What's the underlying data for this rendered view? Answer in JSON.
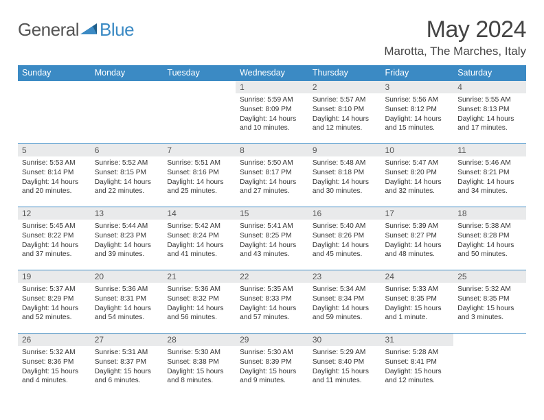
{
  "brand": {
    "text1": "General",
    "text2": "Blue",
    "accent": "#3b8ac4",
    "triangle": "#1f5f8b"
  },
  "title": "May 2024",
  "location": "Marotta, The Marches, Italy",
  "weekdays": [
    "Sunday",
    "Monday",
    "Tuesday",
    "Wednesday",
    "Thursday",
    "Friday",
    "Saturday"
  ],
  "colors": {
    "headerBg": "#3b8ac4",
    "headerText": "#ffffff",
    "dayBg": "#e9eaeb",
    "border": "#3b8ac4"
  },
  "weeks": [
    [
      null,
      null,
      null,
      {
        "n": "1",
        "sr": "5:59 AM",
        "ss": "8:09 PM",
        "dl": "14 hours and 10 minutes."
      },
      {
        "n": "2",
        "sr": "5:57 AM",
        "ss": "8:10 PM",
        "dl": "14 hours and 12 minutes."
      },
      {
        "n": "3",
        "sr": "5:56 AM",
        "ss": "8:12 PM",
        "dl": "14 hours and 15 minutes."
      },
      {
        "n": "4",
        "sr": "5:55 AM",
        "ss": "8:13 PM",
        "dl": "14 hours and 17 minutes."
      }
    ],
    [
      {
        "n": "5",
        "sr": "5:53 AM",
        "ss": "8:14 PM",
        "dl": "14 hours and 20 minutes."
      },
      {
        "n": "6",
        "sr": "5:52 AM",
        "ss": "8:15 PM",
        "dl": "14 hours and 22 minutes."
      },
      {
        "n": "7",
        "sr": "5:51 AM",
        "ss": "8:16 PM",
        "dl": "14 hours and 25 minutes."
      },
      {
        "n": "8",
        "sr": "5:50 AM",
        "ss": "8:17 PM",
        "dl": "14 hours and 27 minutes."
      },
      {
        "n": "9",
        "sr": "5:48 AM",
        "ss": "8:18 PM",
        "dl": "14 hours and 30 minutes."
      },
      {
        "n": "10",
        "sr": "5:47 AM",
        "ss": "8:20 PM",
        "dl": "14 hours and 32 minutes."
      },
      {
        "n": "11",
        "sr": "5:46 AM",
        "ss": "8:21 PM",
        "dl": "14 hours and 34 minutes."
      }
    ],
    [
      {
        "n": "12",
        "sr": "5:45 AM",
        "ss": "8:22 PM",
        "dl": "14 hours and 37 minutes."
      },
      {
        "n": "13",
        "sr": "5:44 AM",
        "ss": "8:23 PM",
        "dl": "14 hours and 39 minutes."
      },
      {
        "n": "14",
        "sr": "5:42 AM",
        "ss": "8:24 PM",
        "dl": "14 hours and 41 minutes."
      },
      {
        "n": "15",
        "sr": "5:41 AM",
        "ss": "8:25 PM",
        "dl": "14 hours and 43 minutes."
      },
      {
        "n": "16",
        "sr": "5:40 AM",
        "ss": "8:26 PM",
        "dl": "14 hours and 45 minutes."
      },
      {
        "n": "17",
        "sr": "5:39 AM",
        "ss": "8:27 PM",
        "dl": "14 hours and 48 minutes."
      },
      {
        "n": "18",
        "sr": "5:38 AM",
        "ss": "8:28 PM",
        "dl": "14 hours and 50 minutes."
      }
    ],
    [
      {
        "n": "19",
        "sr": "5:37 AM",
        "ss": "8:29 PM",
        "dl": "14 hours and 52 minutes."
      },
      {
        "n": "20",
        "sr": "5:36 AM",
        "ss": "8:31 PM",
        "dl": "14 hours and 54 minutes."
      },
      {
        "n": "21",
        "sr": "5:36 AM",
        "ss": "8:32 PM",
        "dl": "14 hours and 56 minutes."
      },
      {
        "n": "22",
        "sr": "5:35 AM",
        "ss": "8:33 PM",
        "dl": "14 hours and 57 minutes."
      },
      {
        "n": "23",
        "sr": "5:34 AM",
        "ss": "8:34 PM",
        "dl": "14 hours and 59 minutes."
      },
      {
        "n": "24",
        "sr": "5:33 AM",
        "ss": "8:35 PM",
        "dl": "15 hours and 1 minute."
      },
      {
        "n": "25",
        "sr": "5:32 AM",
        "ss": "8:35 PM",
        "dl": "15 hours and 3 minutes."
      }
    ],
    [
      {
        "n": "26",
        "sr": "5:32 AM",
        "ss": "8:36 PM",
        "dl": "15 hours and 4 minutes."
      },
      {
        "n": "27",
        "sr": "5:31 AM",
        "ss": "8:37 PM",
        "dl": "15 hours and 6 minutes."
      },
      {
        "n": "28",
        "sr": "5:30 AM",
        "ss": "8:38 PM",
        "dl": "15 hours and 8 minutes."
      },
      {
        "n": "29",
        "sr": "5:30 AM",
        "ss": "8:39 PM",
        "dl": "15 hours and 9 minutes."
      },
      {
        "n": "30",
        "sr": "5:29 AM",
        "ss": "8:40 PM",
        "dl": "15 hours and 11 minutes."
      },
      {
        "n": "31",
        "sr": "5:28 AM",
        "ss": "8:41 PM",
        "dl": "15 hours and 12 minutes."
      },
      null
    ]
  ],
  "labels": {
    "sunrise": "Sunrise:",
    "sunset": "Sunset:",
    "daylight": "Daylight:"
  }
}
